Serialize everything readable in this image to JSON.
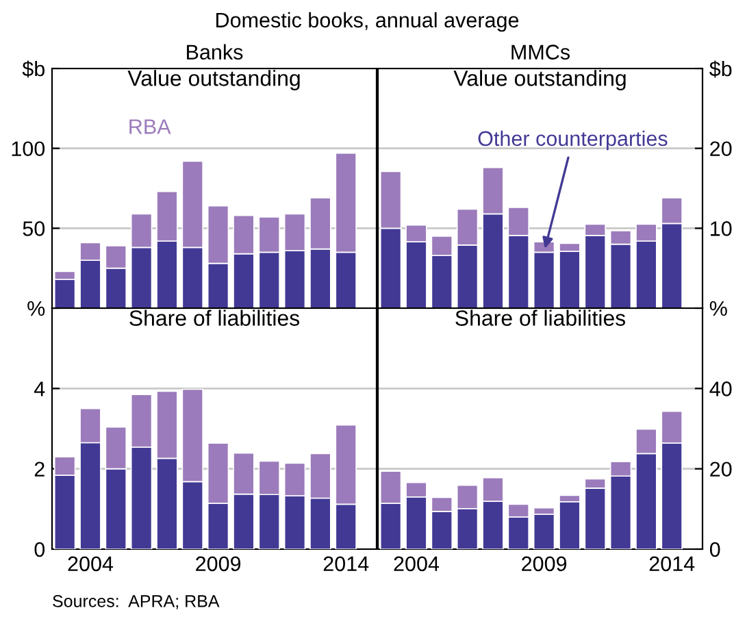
{
  "chart_data": [
    {
      "type": "bar",
      "stacked": true,
      "title": "Value outstanding",
      "subtitle": "Domestic books, annual average",
      "annotations": [
        "Banks"
      ],
      "x": [
        2003,
        2004,
        2005,
        2006,
        2007,
        2008,
        2009,
        2010,
        2011,
        2012,
        2013,
        2014
      ],
      "series": [
        {
          "color": "#423995",
          "values": [
            18,
            30,
            25,
            38,
            42,
            38,
            28,
            34,
            35,
            36,
            37,
            35
          ]
        },
        {
          "name": "RBA",
          "color": "#9b7bbb",
          "values": [
            5,
            11,
            14,
            21,
            31,
            54,
            36,
            24,
            22,
            23,
            32,
            62
          ]
        }
      ],
      "xlim": [
        2002.5,
        2015.2
      ],
      "xticks": [
        2004,
        2009,
        2014
      ],
      "ylim": [
        0,
        150
      ],
      "yticks": [
        50,
        100,
        {
          "value": 150,
          "label": "$b"
        }
      ],
      "grid": "y",
      "tick_labels": "y",
      "legend": false
    },
    {
      "type": "bar",
      "stacked": true,
      "title": "Value outstanding",
      "annotations": [
        "MMCs"
      ],
      "x": [
        2003,
        2004,
        2005,
        2006,
        2007,
        2008,
        2009,
        2010,
        2011,
        2012,
        2013,
        2014
      ],
      "series": [
        {
          "name": "Other counterparties",
          "color": "#423995",
          "values": [
            10.0,
            8.3,
            6.6,
            7.9,
            11.8,
            9.1,
            7.0,
            7.1,
            9.1,
            8.0,
            8.4,
            10.6
          ]
        },
        {
          "color": "#9b7bbb",
          "values": [
            7.1,
            2.1,
            2.4,
            4.5,
            5.8,
            3.5,
            1.3,
            1.0,
            1.4,
            1.7,
            2.1,
            3.2
          ]
        }
      ],
      "xlim": [
        2002.5,
        2015.2
      ],
      "xticks": [
        2004,
        2009,
        2014
      ],
      "ylim": [
        0,
        30
      ],
      "yticks": [
        10,
        20,
        {
          "value": 30,
          "label": "$b"
        }
      ],
      "grid": "y",
      "tick_labels": "y",
      "legend": false
    },
    {
      "type": "bar",
      "stacked": true,
      "title": "Share of liabilities",
      "annotations": [
        "Sources:  APRA; RBA"
      ],
      "x": [
        2003,
        2004,
        2005,
        2006,
        2007,
        2008,
        2009,
        2010,
        2011,
        2012,
        2013,
        2014
      ],
      "series": [
        {
          "color": "#423995",
          "values": [
            1.84,
            2.65,
            2.0,
            2.54,
            2.26,
            1.68,
            1.14,
            1.37,
            1.36,
            1.33,
            1.27,
            1.12
          ]
        },
        {
          "color": "#9b7bbb",
          "values": [
            0.46,
            0.85,
            1.04,
            1.31,
            1.67,
            2.3,
            1.5,
            1.02,
            0.83,
            0.81,
            1.11,
            1.97
          ]
        }
      ],
      "xlim": [
        2002.5,
        2015.2
      ],
      "xticks": [
        2004,
        2009,
        2014
      ],
      "ylim": [
        0,
        6
      ],
      "yticks": [
        0,
        2,
        4,
        {
          "value": 6,
          "label": "%"
        }
      ],
      "grid": "y",
      "legend": false
    },
    {
      "type": "bar",
      "stacked": true,
      "title": "Share of liabilities",
      "x": [
        2003,
        2004,
        2005,
        2006,
        2007,
        2008,
        2009,
        2010,
        2011,
        2012,
        2013,
        2014
      ],
      "series": [
        {
          "color": "#423995",
          "values": [
            11.4,
            13.0,
            9.4,
            10.1,
            11.9,
            8.0,
            8.7,
            11.8,
            15.2,
            18.2,
            23.8,
            26.4
          ]
        },
        {
          "color": "#9b7bbb",
          "values": [
            8.0,
            3.6,
            3.5,
            5.8,
            5.9,
            3.2,
            1.6,
            1.6,
            2.3,
            3.6,
            6.1,
            7.9
          ]
        }
      ],
      "xlim": [
        2002.5,
        2015.2
      ],
      "xticks": [
        2004,
        2009,
        2014
      ],
      "ylim": [
        0,
        60
      ],
      "yticks": [
        0,
        20,
        40,
        {
          "value": 60,
          "label": "%"
        }
      ],
      "grid": "y",
      "legend": false
    }
  ]
}
